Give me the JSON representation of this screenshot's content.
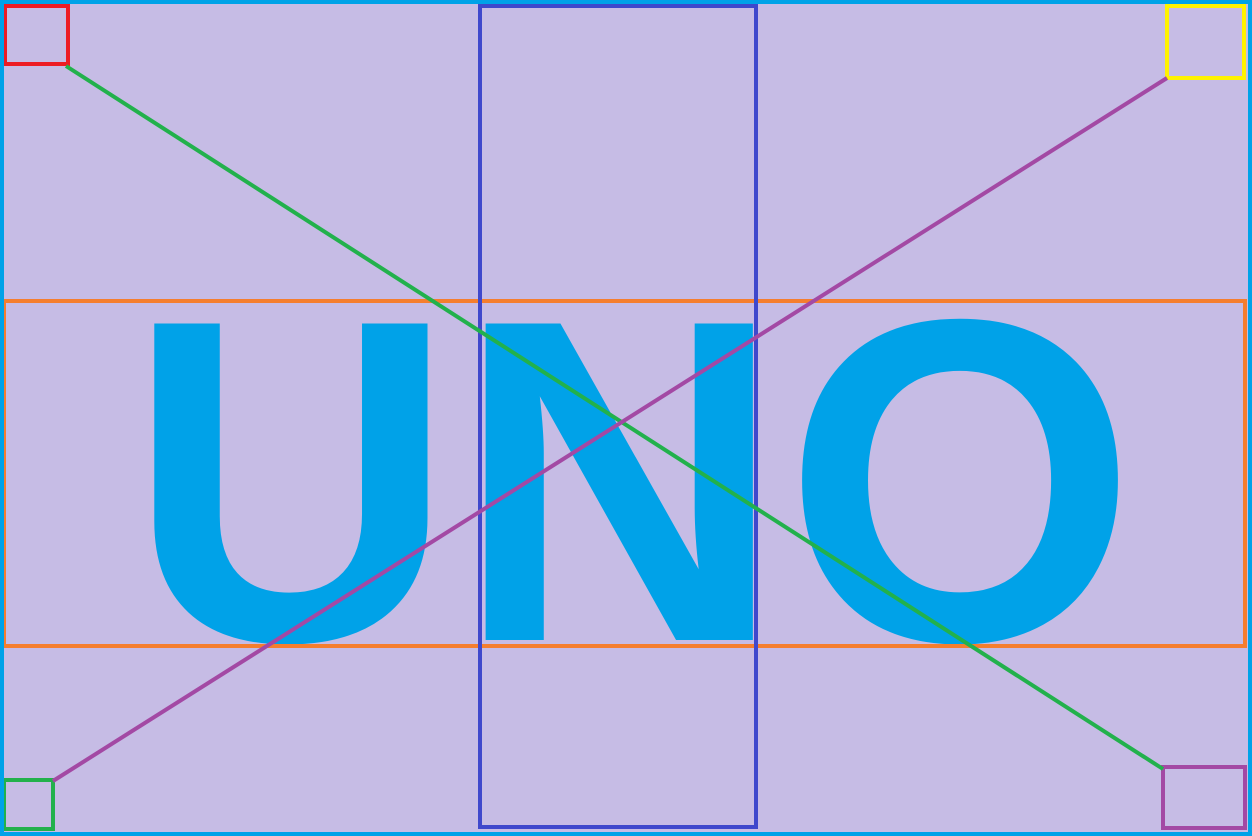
{
  "word": "UNO",
  "colors": {
    "background": "#C6BCE5",
    "frame": "#00A2E8",
    "text": "#00A2E8",
    "text_band_box": "#F57E2E",
    "center_column_box": "#3F48CC",
    "top_left_square": "#ED1C24",
    "top_right_square": "#FFF200",
    "bottom_left_square": "#22B14C",
    "bottom_right_square": "#A349A4",
    "diagonal_green": "#22B14C",
    "diagonal_purple": "#A349A4"
  }
}
